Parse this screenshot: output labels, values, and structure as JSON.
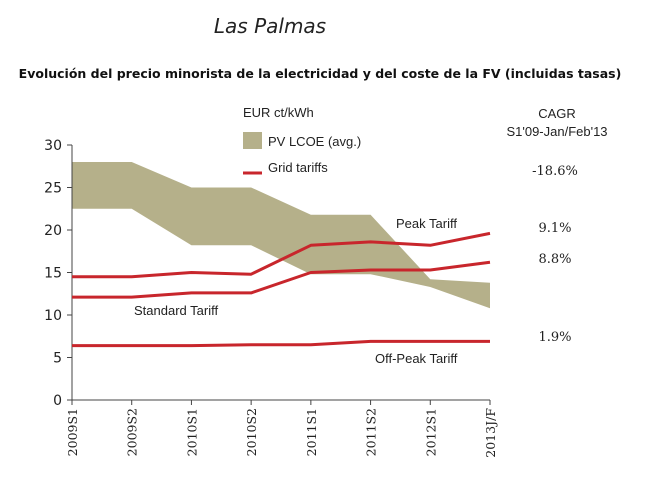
{
  "chart_data": {
    "type": "line",
    "title": "Las Palmas",
    "subtitle": "Evolución del precio minorista de la electricidad y del coste de la FV (incluidas tasas)",
    "ylabel": "EUR ct/kWh",
    "ylim": [
      0,
      30
    ],
    "yticks": [
      0,
      5,
      10,
      15,
      20,
      25,
      30
    ],
    "categories": [
      "2009S1",
      "2009S2",
      "2010S1",
      "2010S2",
      "2011S1",
      "2011S2",
      "2012S1",
      "2013J/F"
    ],
    "band": {
      "name": "PV LCOE (avg.)",
      "upper": [
        28,
        28,
        25,
        25,
        21.8,
        21.8,
        14.2,
        13.8
      ],
      "lower": [
        22.5,
        22.5,
        18.2,
        18.2,
        14.8,
        14.8,
        13.3,
        10.8
      ],
      "color": "#b5b08a"
    },
    "series": [
      {
        "name": "Peak Tariff",
        "values": [
          14.5,
          14.5,
          15.0,
          14.8,
          18.2,
          18.6,
          18.2,
          19.6
        ],
        "cagr": "9.1%"
      },
      {
        "name": "Standard Tariff",
        "values": [
          12.1,
          12.1,
          12.6,
          12.6,
          15.0,
          15.3,
          15.3,
          16.2
        ],
        "cagr": "8.8%"
      },
      {
        "name": "Off-Peak Tariff",
        "values": [
          6.4,
          6.4,
          6.4,
          6.5,
          6.5,
          6.9,
          6.9,
          6.9
        ],
        "cagr": "1.9%"
      }
    ],
    "line_color": "#c8262c",
    "legend": {
      "band_label": "PV LCOE (avg.)",
      "line_label": "Grid tariffs"
    },
    "cagr_header": [
      "CAGR",
      "S1'09-Jan/Feb'13"
    ],
    "cagr_pv": "-18.6%"
  }
}
